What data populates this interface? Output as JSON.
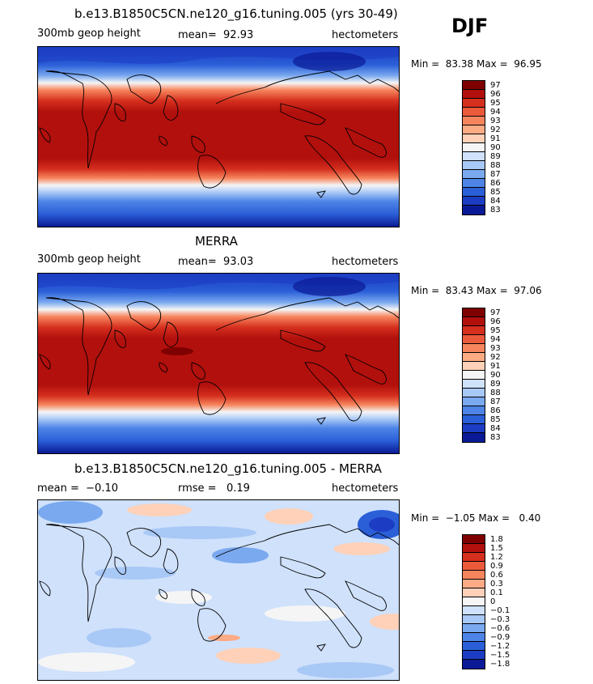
{
  "season": "DJF",
  "panels": [
    {
      "title": "b.e13.B1850C5CN.ne120_g16.tuning.005 (yrs 30-49)",
      "left_label": "300mb geop height",
      "center_label": "mean=  92.93",
      "right_label": "hectometers",
      "minmax": "Min =  83.38 Max =  96.95",
      "legend_labels": [
        "97",
        "96",
        "95",
        "94",
        "93",
        "92",
        "91",
        "90",
        "89",
        "88",
        "87",
        "86",
        "85",
        "84",
        "83"
      ],
      "legend_colors": [
        "#7f0000",
        "#b2100d",
        "#d52f1e",
        "#ec5a3c",
        "#f6855d",
        "#fcab85",
        "#fed1b8",
        "#f5f5f5",
        "#cfe1fb",
        "#a8c8f6",
        "#7aa9ef",
        "#4d84e6",
        "#2b5fd8",
        "#1c3dc3",
        "#0a1a96"
      ]
    },
    {
      "title": "MERRA",
      "left_label": "300mb geop height",
      "center_label": "mean=  93.03",
      "right_label": "hectometers",
      "minmax": "Min =  83.43 Max =  97.06",
      "legend_labels": [
        "97",
        "96",
        "95",
        "94",
        "93",
        "92",
        "91",
        "90",
        "89",
        "88",
        "87",
        "86",
        "85",
        "84",
        "83"
      ],
      "legend_colors": [
        "#7f0000",
        "#b2100d",
        "#d52f1e",
        "#ec5a3c",
        "#f6855d",
        "#fcab85",
        "#fed1b8",
        "#f5f5f5",
        "#cfe1fb",
        "#a8c8f6",
        "#7aa9ef",
        "#4d84e6",
        "#2b5fd8",
        "#1c3dc3",
        "#0a1a96"
      ]
    },
    {
      "title": "b.e13.B1850C5CN.ne120_g16.tuning.005 - MERRA",
      "left_label": "mean =  −0.10",
      "center_label": "rmse =   0.19",
      "right_label": "hectometers",
      "minmax": "Min =  −1.05 Max =   0.40",
      "legend_labels": [
        "1.8",
        "1.5",
        "1.2",
        "0.9",
        "0.6",
        "0.3",
        "0.1",
        "0",
        "−0.1",
        "−0.3",
        "−0.6",
        "−0.9",
        "−1.2",
        "−1.5",
        "−1.8"
      ],
      "legend_colors": [
        "#7f0000",
        "#b2100d",
        "#d52f1e",
        "#ec5a3c",
        "#f6855d",
        "#fcab85",
        "#fed1b8",
        "#f5f5f5",
        "#cfe1fb",
        "#a8c8f6",
        "#7aa9ef",
        "#4d84e6",
        "#2b5fd8",
        "#1c3dc3",
        "#0a1a96"
      ]
    }
  ]
}
